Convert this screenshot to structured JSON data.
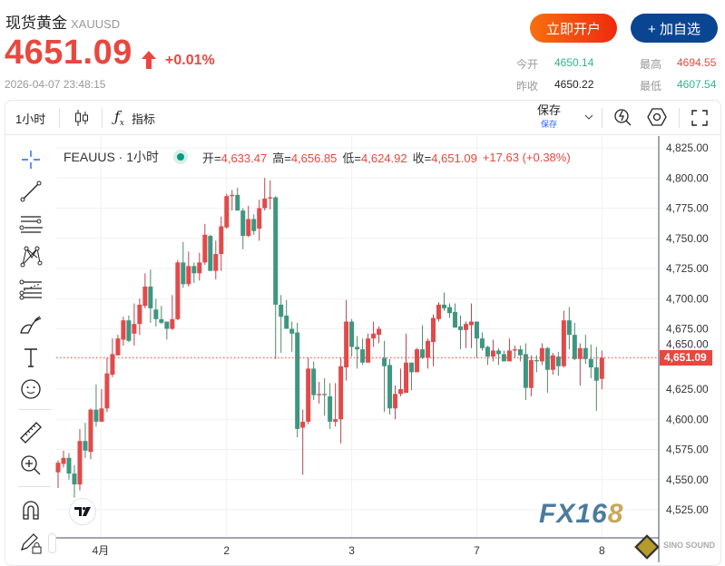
{
  "header": {
    "name": "现货黄金",
    "symbol": "XAUUSD",
    "price": "4651.09",
    "change": "+0.01%",
    "timestamp": "2026-04-07 23:48:15",
    "open_account": "立即开户",
    "add_watch": "+ 加自选",
    "stats": {
      "open_label": "今开",
      "open": "4650.14",
      "prev_label": "昨收",
      "prev": "4650.22",
      "high_label": "最高",
      "high": "4694.55",
      "low_label": "最低",
      "low": "4607.54"
    }
  },
  "toolbar": {
    "interval": "1小时",
    "indicators": "指标",
    "save": "保存",
    "save_sub": "保存"
  },
  "legend": {
    "symbol": "FEAUUS · 1小时",
    "o_label": "开=",
    "o": "4,633.47",
    "h_label": "高=",
    "h": "4,656.85",
    "l_label": "低=",
    "l": "4,624.92",
    "c_label": "收=",
    "c": "4,651.09",
    "chg": "+17.63 (+0.38%)"
  },
  "colors": {
    "up": "#e24a4a",
    "down": "#3e9681",
    "accent": "#e8473f",
    "brand_blue": "#0a4592"
  },
  "watermark": "FX168",
  "sponsor": "SINO SOUND",
  "chart_data": {
    "type": "candlestick",
    "interval": "1小时",
    "ylim": [
      4515,
      4835
    ],
    "price_ticks": [
      "4,825.00",
      "4,800.00",
      "4,775.00",
      "4,750.00",
      "4,725.00",
      "4,700.00",
      "4,675.00",
      "4,650.00",
      "4,625.00",
      "4,600.00",
      "4,575.00",
      "4,550.00",
      "4,525.00"
    ],
    "current_price": "4,651.09",
    "x_ticks": [
      {
        "label": "4月",
        "index": 9
      },
      {
        "label": "2",
        "index": 32
      },
      {
        "label": "3",
        "index": 55
      },
      {
        "label": "7",
        "index": 78
      },
      {
        "label": "8",
        "index": 101
      }
    ],
    "ohlc": [
      [
        4556,
        4566,
        4543,
        4564
      ],
      [
        4563,
        4574,
        4560,
        4568
      ],
      [
        4568,
        4572,
        4550,
        4555
      ],
      [
        4555,
        4562,
        4535,
        4546
      ],
      [
        4546,
        4592,
        4541,
        4582
      ],
      [
        4582,
        4597,
        4568,
        4574
      ],
      [
        4573,
        4609,
        4567,
        4608
      ],
      [
        4608,
        4629,
        4594,
        4598
      ],
      [
        4598,
        4625,
        4598,
        4609
      ],
      [
        4609,
        4651,
        4606,
        4638
      ],
      [
        4637,
        4667,
        4635,
        4654
      ],
      [
        4653,
        4670,
        4653,
        4667
      ],
      [
        4666,
        4685,
        4661,
        4682
      ],
      [
        4682,
        4686,
        4664,
        4665
      ],
      [
        4671,
        4696,
        4661,
        4679
      ],
      [
        4679,
        4700,
        4670,
        4695
      ],
      [
        4694,
        4721,
        4692,
        4710
      ],
      [
        4710,
        4724,
        4680,
        4692
      ],
      [
        4691,
        4700,
        4677,
        4683
      ],
      [
        4683,
        4694,
        4679,
        4680
      ],
      [
        4681,
        4681,
        4666,
        4675
      ],
      [
        4675,
        4703,
        4674,
        4683
      ],
      [
        4683,
        4732,
        4682,
        4730
      ],
      [
        4730,
        4747,
        4709,
        4712
      ],
      [
        4712,
        4739,
        4710,
        4727
      ],
      [
        4727,
        4730,
        4713,
        4721
      ],
      [
        4721,
        4738,
        4715,
        4730
      ],
      [
        4730,
        4762,
        4728,
        4753
      ],
      [
        4752,
        4753,
        4723,
        4723
      ],
      [
        4723,
        4748,
        4716,
        4737
      ],
      [
        4737,
        4768,
        4723,
        4760
      ],
      [
        4759,
        4787,
        4758,
        4785
      ],
      [
        4785,
        4790,
        4773,
        4786
      ],
      [
        4786,
        4792,
        4773,
        4773
      ],
      [
        4773,
        4775,
        4741,
        4752
      ],
      [
        4752,
        4777,
        4751,
        4766
      ],
      [
        4766,
        4770,
        4753,
        4756
      ],
      [
        4758,
        4782,
        4748,
        4775
      ],
      [
        4775,
        4800,
        4773,
        4783
      ],
      [
        4783,
        4798,
        4774,
        4784
      ],
      [
        4784,
        4785,
        4650,
        4695
      ],
      [
        4695,
        4703,
        4655,
        4685
      ],
      [
        4686,
        4699,
        4675,
        4675
      ],
      [
        4675,
        4681,
        4656,
        4671
      ],
      [
        4672,
        4680,
        4585,
        4592
      ],
      [
        4593,
        4608,
        4554,
        4598
      ],
      [
        4598,
        4651,
        4596,
        4642
      ],
      [
        4642,
        4648,
        4616,
        4620
      ],
      [
        4620,
        4631,
        4613,
        4621
      ],
      [
        4621,
        4634,
        4603,
        4620
      ],
      [
        4619,
        4630,
        4592,
        4598
      ],
      [
        4598,
        4630,
        4594,
        4600
      ],
      [
        4600,
        4651,
        4580,
        4644
      ],
      [
        4643,
        4699,
        4632,
        4681
      ],
      [
        4681,
        4683,
        4652,
        4660
      ],
      [
        4660,
        4669,
        4642,
        4658
      ],
      [
        4658,
        4667,
        4645,
        4647
      ],
      [
        4647,
        4671,
        4647,
        4667
      ],
      [
        4667,
        4681,
        4660,
        4671
      ],
      [
        4670,
        4677,
        4663,
        4675
      ],
      [
        4651,
        4665,
        4606,
        4644
      ],
      [
        4645,
        4650,
        4604,
        4609
      ],
      [
        4609,
        4628,
        4600,
        4621
      ],
      [
        4621,
        4642,
        4619,
        4625
      ],
      [
        4622,
        4671,
        4622,
        4647
      ],
      [
        4647,
        4647,
        4624,
        4639
      ],
      [
        4639,
        4659,
        4639,
        4658
      ],
      [
        4658,
        4678,
        4650,
        4651
      ],
      [
        4651,
        4667,
        4642,
        4665
      ],
      [
        4664,
        4687,
        4644,
        4684
      ],
      [
        4683,
        4697,
        4681,
        4695
      ],
      [
        4695,
        4705,
        4690,
        4692
      ],
      [
        4693,
        4696,
        4684,
        4688
      ],
      [
        4689,
        4696,
        4676,
        4676
      ],
      [
        4677,
        4686,
        4658,
        4674
      ],
      [
        4674,
        4681,
        4659,
        4679
      ],
      [
        4678,
        4696,
        4659,
        4681
      ],
      [
        4681,
        4681,
        4651,
        4667
      ],
      [
        4667,
        4672,
        4657,
        4659
      ],
      [
        4660,
        4661,
        4645,
        4652
      ],
      [
        4652,
        4666,
        4648,
        4657
      ],
      [
        4657,
        4659,
        4645,
        4654
      ],
      [
        4654,
        4657,
        4648,
        4648
      ],
      [
        4648,
        4667,
        4648,
        4657
      ],
      [
        4657,
        4661,
        4651,
        4658
      ],
      [
        4658,
        4661,
        4648,
        4653
      ],
      [
        4654,
        4663,
        4616,
        4626
      ],
      [
        4626,
        4653,
        4619,
        4649
      ],
      [
        4649,
        4653,
        4639,
        4648
      ],
      [
        4648,
        4663,
        4645,
        4659
      ],
      [
        4659,
        4660,
        4622,
        4641
      ],
      [
        4641,
        4655,
        4637,
        4653
      ],
      [
        4652,
        4656,
        4636,
        4644
      ],
      [
        4644,
        4690,
        4643,
        4682
      ],
      [
        4682,
        4693,
        4658,
        4670
      ],
      [
        4670,
        4680,
        4649,
        4650
      ],
      [
        4650,
        4663,
        4628,
        4659
      ],
      [
        4659,
        4670,
        4646,
        4650
      ],
      [
        4650,
        4662,
        4634,
        4643
      ],
      [
        4643,
        4660,
        4607,
        4632
      ],
      [
        4633.47,
        4656.85,
        4624.92,
        4651.09
      ]
    ]
  }
}
